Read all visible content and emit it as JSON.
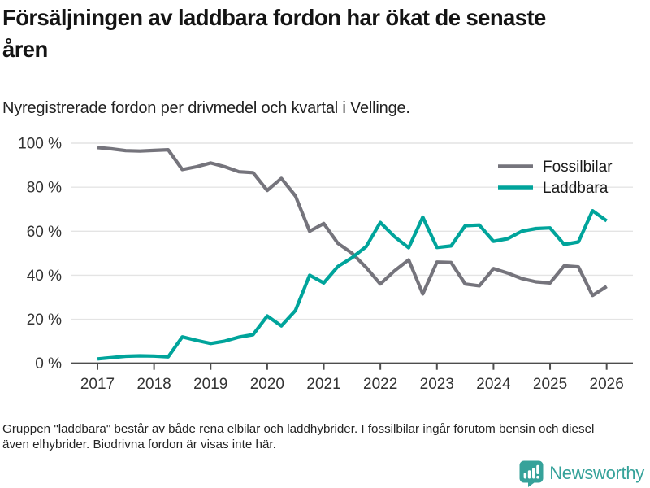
{
  "header": {
    "title": "Försäljningen av laddbara fordon har ökat de senaste åren",
    "subtitle": "Nyregistrerade fordon per drivmedel och kvartal i Vellinge."
  },
  "chart_data": {
    "type": "line",
    "title": "Försäljningen av laddbara fordon har ökat de senaste åren",
    "xlabel": "",
    "ylabel": "",
    "x_unit": "quarter",
    "categories": [
      "2017 Q1",
      "2017 Q2",
      "2017 Q3",
      "2017 Q4",
      "2018 Q1",
      "2018 Q2",
      "2018 Q3",
      "2018 Q4",
      "2019 Q1",
      "2019 Q2",
      "2019 Q3",
      "2019 Q4",
      "2020 Q1",
      "2020 Q2",
      "2020 Q3",
      "2020 Q4",
      "2021 Q1",
      "2021 Q2",
      "2021 Q3",
      "2021 Q4",
      "2022 Q1",
      "2022 Q2",
      "2022 Q3",
      "2022 Q4",
      "2023 Q1",
      "2023 Q2",
      "2023 Q3",
      "2023 Q4",
      "2024 Q1",
      "2024 Q2",
      "2024 Q3",
      "2024 Q4",
      "2025 Q1",
      "2025 Q2",
      "2025 Q3",
      "2025 Q4",
      "2026 Q1"
    ],
    "series": [
      {
        "name": "Fossilbilar",
        "color": "#75747C",
        "values": [
          98,
          97.4,
          96.6,
          96.4,
          96.7,
          97,
          88,
          89.3,
          91,
          89.3,
          87,
          86.6,
          78.5,
          84,
          76,
          60,
          63.5,
          54.5,
          50,
          43.5,
          36,
          42,
          47,
          31.5,
          46,
          45.8,
          36,
          35.2,
          43,
          41,
          38.5,
          37,
          36.5,
          44.3,
          43.8,
          30.8,
          34.9
        ]
      },
      {
        "name": "Laddbara",
        "color": "#00A49B",
        "values": [
          2,
          2.6,
          3.2,
          3.4,
          3.3,
          2.9,
          12,
          10.4,
          9,
          10.1,
          11.9,
          13,
          21.5,
          17,
          24,
          40,
          36.5,
          44,
          48,
          53,
          64,
          57.5,
          52.5,
          66.4,
          52.6,
          53.3,
          62.5,
          62.8,
          55.4,
          56.6,
          60,
          61.2,
          61.5,
          54,
          55.1,
          69.3,
          64.7
        ]
      }
    ],
    "ylim": [
      0,
      100
    ],
    "yticks": [
      {
        "value": 0,
        "label": "0 %"
      },
      {
        "value": 20,
        "label": "20 %"
      },
      {
        "value": 40,
        "label": "40 %"
      },
      {
        "value": 60,
        "label": "60 %"
      },
      {
        "value": 80,
        "label": "80 %"
      },
      {
        "value": 100,
        "label": "100 %"
      }
    ],
    "xticks": [
      {
        "year": 2017,
        "label": "2017"
      },
      {
        "year": 2018,
        "label": "2018"
      },
      {
        "year": 2019,
        "label": "2019"
      },
      {
        "year": 2020,
        "label": "2020"
      },
      {
        "year": 2021,
        "label": "2021"
      },
      {
        "year": 2022,
        "label": "2022"
      },
      {
        "year": 2023,
        "label": "2023"
      },
      {
        "year": 2024,
        "label": "2024"
      },
      {
        "year": 2025,
        "label": "2025"
      },
      {
        "year": 2026,
        "label": "2026"
      }
    ],
    "grid": "horizontal",
    "legend_position": "top-right",
    "colors": {
      "grid": "#e4e4e4",
      "axis": "#4d4d4d",
      "tick_text": "#333333",
      "legend_text": "#1a1a1a"
    }
  },
  "footer": {
    "note": "Gruppen \"laddbara\" består av både rena elbilar och laddhybrider. I fossilbilar ingår förutom bensin och diesel även elhybrider. Biodrivna fordon är visas inte här."
  },
  "branding": {
    "name": "Newsworthy",
    "icon": "bar-chart-speech-bubble-icon",
    "color": "#36A29A"
  }
}
